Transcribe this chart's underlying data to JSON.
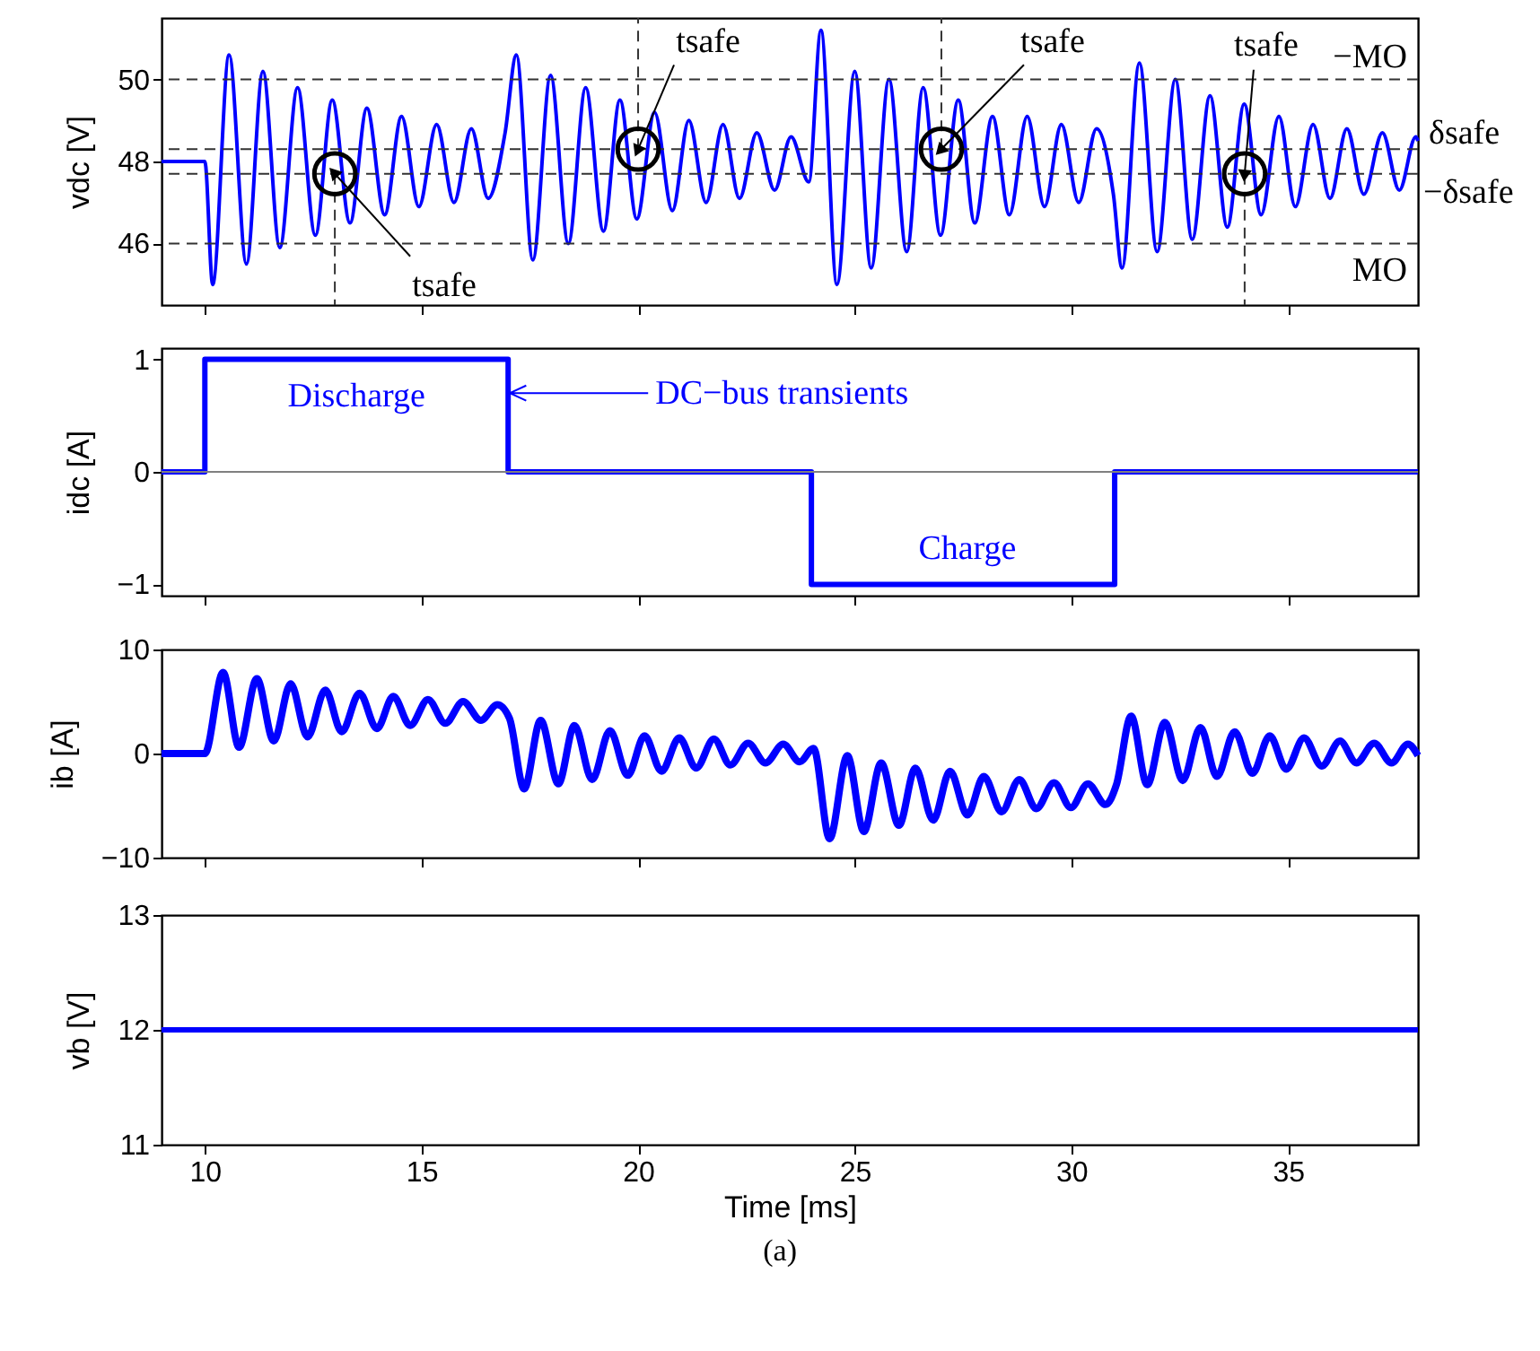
{
  "chart_data": [
    {
      "type": "line",
      "ylabel": "vdc [V]",
      "xlim": [
        9,
        38
      ],
      "xticks": [
        10,
        15,
        20,
        25,
        30,
        35
      ],
      "ylim": [
        44.5,
        51.5
      ],
      "yticks": [
        46,
        48,
        50
      ],
      "tick_labels": "y",
      "grid": false,
      "marker": "none",
      "line_style": "solid",
      "x": [
        9,
        10,
        10.18,
        10.56,
        10.96,
        11.34,
        11.73,
        12.14,
        12.55,
        12.94,
        13.35,
        13.74,
        14.15,
        14.54,
        14.94,
        15.35,
        15.75,
        16.15,
        16.54,
        16.93,
        17.19,
        17.57,
        17.98,
        18.39,
        18.79,
        19.2,
        19.58,
        19.97,
        20.38,
        20.79,
        21.17,
        21.57,
        21.96,
        22.34,
        22.74,
        23.15,
        23.53,
        23.94,
        24.22,
        24.59,
        25.0,
        25.38,
        25.79,
        26.2,
        26.58,
        26.98,
        27.39,
        27.77,
        28.18,
        28.57,
        28.98,
        29.38,
        29.77,
        30.17,
        30.58,
        30.97,
        31.17,
        31.57,
        31.98,
        32.4,
        32.79,
        33.2,
        33.6,
        33.99,
        34.38,
        34.79,
        35.17,
        35.58,
        35.97,
        36.36,
        36.75,
        37.18,
        37.57,
        37.95,
        38
      ],
      "series": [
        {
          "color": "#0000ff",
          "values": [
            48,
            48,
            45.0,
            50.6,
            45.5,
            50.2,
            45.9,
            49.8,
            46.2,
            49.5,
            46.5,
            49.3,
            46.7,
            49.1,
            46.9,
            48.9,
            47.0,
            48.8,
            47.1,
            48.7,
            50.6,
            45.6,
            50.1,
            46.0,
            49.8,
            46.3,
            49.5,
            46.6,
            49.2,
            46.8,
            49.0,
            47.0,
            48.9,
            47.1,
            48.7,
            47.3,
            48.6,
            47.5,
            51.2,
            45.0,
            50.2,
            45.4,
            50.0,
            45.8,
            49.8,
            46.2,
            49.5,
            46.5,
            49.1,
            46.7,
            49.1,
            46.9,
            48.9,
            47.0,
            48.8,
            47.2,
            45.4,
            50.4,
            45.8,
            50.0,
            46.1,
            49.6,
            46.4,
            49.4,
            46.7,
            49.1,
            46.9,
            48.9,
            47.1,
            48.8,
            47.2,
            48.7,
            47.3,
            48.6,
            48.5
          ]
        }
      ],
      "ref_lines": [
        {
          "axis": "y",
          "value": 50,
          "label": "−MO",
          "color": "#333333",
          "line_style": "dashed"
        },
        {
          "axis": "y",
          "value": 48.3,
          "label": "δsafe",
          "color": "#333333",
          "line_style": "dashed"
        },
        {
          "axis": "y",
          "value": 47.7,
          "label": "−δsafe",
          "color": "#333333",
          "line_style": "dashed"
        },
        {
          "axis": "y",
          "value": 46,
          "label": "MO",
          "color": "#333333",
          "line_style": "dashed"
        },
        {
          "axis": "x",
          "value": 13,
          "color": "#333333",
          "line_style": "dashed"
        },
        {
          "axis": "x",
          "value": 20,
          "color": "#333333",
          "line_style": "dashed"
        },
        {
          "axis": "x",
          "value": 27,
          "color": "#333333",
          "line_style": "dashed"
        },
        {
          "axis": "x",
          "value": 34,
          "color": "#333333",
          "line_style": "dashed"
        }
      ],
      "annotations": [
        {
          "text": "tsafe",
          "x": 13,
          "y": 47.7
        },
        {
          "text": "tsafe",
          "x": 20,
          "y": 48.3
        },
        {
          "text": "tsafe",
          "x": 27,
          "y": 48.3
        },
        {
          "text": "tsafe",
          "x": 34,
          "y": 47.7
        }
      ]
    },
    {
      "type": "step",
      "ylabel": "idc [A]",
      "xlim": [
        9,
        38
      ],
      "xticks": [
        10,
        15,
        20,
        25,
        30,
        35
      ],
      "ylim": [
        -1.1,
        1.1
      ],
      "yticks": [
        -1,
        0,
        1
      ],
      "tick_labels": "y",
      "grid": false,
      "marker": "none",
      "line_style": "solid",
      "x": [
        9,
        10,
        17,
        24,
        31,
        38
      ],
      "series": [
        {
          "color": "#0000ff",
          "values": [
            0,
            1,
            0,
            -1,
            0,
            0
          ]
        }
      ],
      "ref_lines": [
        {
          "axis": "y",
          "value": 0,
          "color": "#808080",
          "line_style": "solid"
        }
      ],
      "annotations": [
        {
          "text": "Discharge",
          "x": 13.5,
          "y": 1
        },
        {
          "text": "DC−bus transients",
          "x": 17,
          "y": 0.7
        },
        {
          "text": "Charge",
          "x": 27.6,
          "y": -1
        }
      ]
    },
    {
      "type": "line",
      "ylabel": "ib [A]",
      "xlim": [
        9,
        38
      ],
      "xticks": [
        10,
        15,
        20,
        25,
        30,
        35
      ],
      "ylim": [
        -10,
        10
      ],
      "yticks": [
        -10,
        0,
        10
      ],
      "tick_labels": "y",
      "grid": false,
      "marker": "none",
      "line_style": "solid",
      "x": [
        9,
        10,
        10.42,
        10.79,
        11.2,
        11.59,
        11.98,
        12.37,
        12.78,
        13.16,
        13.57,
        13.97,
        14.35,
        14.74,
        15.15,
        15.55,
        15.96,
        16.37,
        16.75,
        17.03,
        17.37,
        17.75,
        18.16,
        18.53,
        18.94,
        19.35,
        19.76,
        20.15,
        20.54,
        20.95,
        21.34,
        21.75,
        22.13,
        22.54,
        22.94,
        23.35,
        23.73,
        24.05,
        24.42,
        24.83,
        25.21,
        25.61,
        26.02,
        26.4,
        26.81,
        27.2,
        27.6,
        27.98,
        28.39,
        28.8,
        29.19,
        29.6,
        29.99,
        30.38,
        30.79,
        31.04,
        31.38,
        31.75,
        32.16,
        32.57,
        32.98,
        33.36,
        33.77,
        34.18,
        34.58,
        34.96,
        35.37,
        35.78,
        36.2,
        36.58,
        36.99,
        37.39,
        37.77,
        38
      ],
      "series": [
        {
          "color": "#0000ff",
          "values": [
            0,
            0,
            7.8,
            0.6,
            7.2,
            1.2,
            6.7,
            1.6,
            6.1,
            2.1,
            5.8,
            2.4,
            5.5,
            2.7,
            5.2,
            2.9,
            5.0,
            3.2,
            4.7,
            3.4,
            -3.4,
            3.2,
            -2.9,
            2.7,
            -2.5,
            2.2,
            -2.1,
            1.7,
            -1.7,
            1.5,
            -1.4,
            1.4,
            -1.1,
            1.0,
            -0.9,
            0.9,
            -0.8,
            0.5,
            -8.2,
            -0.2,
            -7.5,
            -0.9,
            -6.9,
            -1.4,
            -6.4,
            -1.7,
            -5.9,
            -2.2,
            -5.6,
            -2.5,
            -5.3,
            -2.8,
            -5.2,
            -2.9,
            -4.9,
            -3.0,
            3.6,
            -3.0,
            3.0,
            -2.6,
            2.5,
            -2.2,
            2.1,
            -1.9,
            1.7,
            -1.5,
            1.5,
            -1.2,
            1.2,
            -0.9,
            1.0,
            -0.9,
            0.9,
            -0.2
          ]
        }
      ]
    },
    {
      "type": "line",
      "ylabel": "vb [V]",
      "xlabel": "Time [ms]",
      "xlim": [
        9,
        38
      ],
      "xticks": [
        10,
        15,
        20,
        25,
        30,
        35
      ],
      "ylim": [
        11,
        13
      ],
      "yticks": [
        11,
        12,
        13
      ],
      "grid": false,
      "marker": "none",
      "line_style": "solid",
      "x": [
        9,
        38
      ],
      "series": [
        {
          "color": "#0000ff",
          "values": [
            12,
            12
          ]
        }
      ],
      "annotations": [
        "(a)"
      ]
    }
  ]
}
